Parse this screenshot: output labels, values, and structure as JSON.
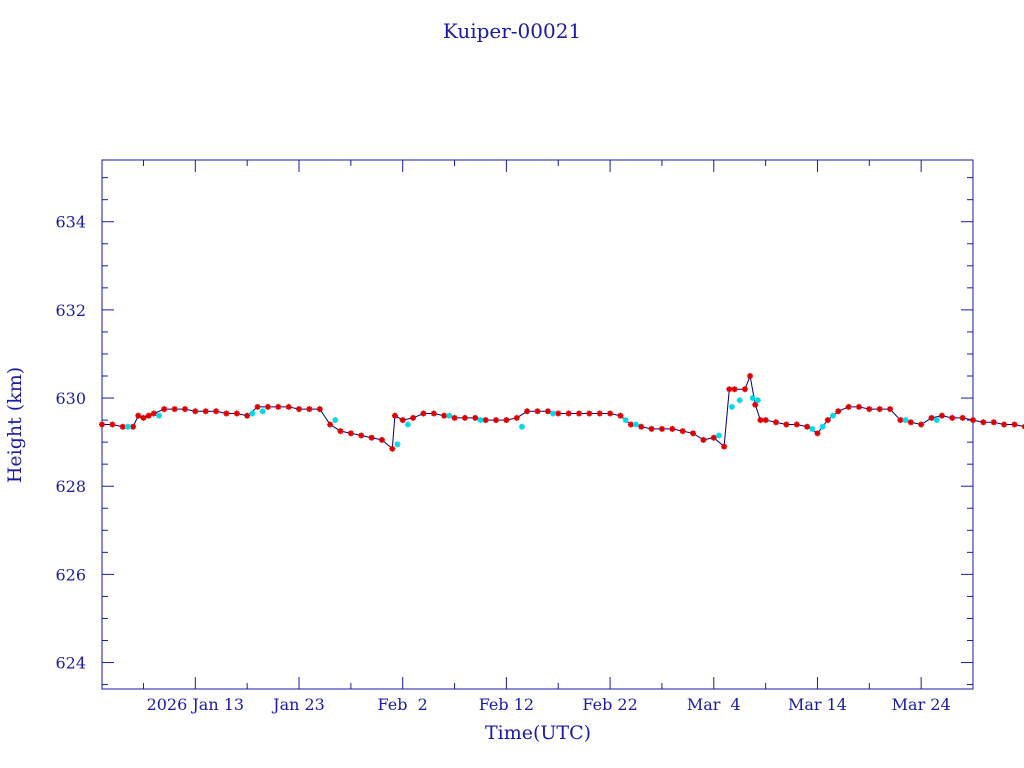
{
  "chart_data": {
    "type": "line",
    "title": "Kuiper-00021",
    "xlabel": "Time(UTC)",
    "ylabel": "Height (km)",
    "x_tick_labels": [
      "2026 Jan 13",
      "Jan 23",
      "Feb  2",
      "Feb 12",
      "Feb 22",
      "Mar  4",
      "Mar 14",
      "Mar 24"
    ],
    "x_ticks": [
      "2026-01-13",
      "2026-01-23",
      "2026-02-02",
      "2026-02-12",
      "2026-02-22",
      "2026-03-04",
      "2026-03-14",
      "2026-03-24"
    ],
    "xlim": [
      "2026-01-04",
      "2026-03-29"
    ],
    "y_ticks": [
      624,
      626,
      628,
      630,
      632,
      634
    ],
    "ylim": [
      623.4,
      635.4
    ],
    "grid": false,
    "colors": {
      "axis": "#1a1aa6",
      "line": "#000080",
      "series_a": "#e00000",
      "series_b": "#00d8e8"
    },
    "series": [
      {
        "marker": "asterisk",
        "color": "#e00000",
        "points": [
          [
            "2026-01-04",
            629.4
          ],
          [
            "2026-01-05",
            629.4
          ],
          [
            "2026-01-06",
            629.35
          ],
          [
            "2026-01-07",
            629.35
          ],
          [
            "2026-01-07T12",
            629.6
          ],
          [
            "2026-01-08",
            629.55
          ],
          [
            "2026-01-08T12",
            629.6
          ],
          [
            "2026-01-09",
            629.65
          ],
          [
            "2026-01-10",
            629.75
          ],
          [
            "2026-01-11",
            629.75
          ],
          [
            "2026-01-12",
            629.75
          ],
          [
            "2026-01-13",
            629.7
          ],
          [
            "2026-01-14",
            629.7
          ],
          [
            "2026-01-15",
            629.7
          ],
          [
            "2026-01-16",
            629.65
          ],
          [
            "2026-01-17",
            629.65
          ],
          [
            "2026-01-18",
            629.6
          ],
          [
            "2026-01-19",
            629.8
          ],
          [
            "2026-01-20",
            629.8
          ],
          [
            "2026-01-21",
            629.8
          ],
          [
            "2026-01-22",
            629.8
          ],
          [
            "2026-01-23",
            629.75
          ],
          [
            "2026-01-24",
            629.75
          ],
          [
            "2026-01-25",
            629.75
          ],
          [
            "2026-01-26",
            629.4
          ],
          [
            "2026-01-27",
            629.25
          ],
          [
            "2026-01-28",
            629.2
          ],
          [
            "2026-01-29",
            629.15
          ],
          [
            "2026-01-30",
            629.1
          ],
          [
            "2026-01-31",
            629.05
          ],
          [
            "2026-02-01",
            628.85
          ],
          [
            "2026-02-01T06",
            629.6
          ],
          [
            "2026-02-02",
            629.5
          ],
          [
            "2026-02-03",
            629.55
          ],
          [
            "2026-02-04",
            629.65
          ],
          [
            "2026-02-05",
            629.65
          ],
          [
            "2026-02-06",
            629.6
          ],
          [
            "2026-02-07",
            629.55
          ],
          [
            "2026-02-08",
            629.55
          ],
          [
            "2026-02-09",
            629.55
          ],
          [
            "2026-02-10",
            629.5
          ],
          [
            "2026-02-11",
            629.5
          ],
          [
            "2026-02-12",
            629.5
          ],
          [
            "2026-02-13",
            629.55
          ],
          [
            "2026-02-14",
            629.7
          ],
          [
            "2026-02-15",
            629.7
          ],
          [
            "2026-02-16",
            629.7
          ],
          [
            "2026-02-17",
            629.65
          ],
          [
            "2026-02-18",
            629.65
          ],
          [
            "2026-02-19",
            629.65
          ],
          [
            "2026-02-20",
            629.65
          ],
          [
            "2026-02-21",
            629.65
          ],
          [
            "2026-02-22",
            629.65
          ],
          [
            "2026-02-23",
            629.6
          ],
          [
            "2026-02-24",
            629.4
          ],
          [
            "2026-02-25",
            629.35
          ],
          [
            "2026-02-26",
            629.3
          ],
          [
            "2026-02-27",
            629.3
          ],
          [
            "2026-02-28",
            629.3
          ],
          [
            "2026-03-01",
            629.25
          ],
          [
            "2026-03-02",
            629.2
          ],
          [
            "2026-03-03",
            629.05
          ],
          [
            "2026-03-04",
            629.1
          ],
          [
            "2026-03-05",
            628.9
          ],
          [
            "2026-03-05T12",
            630.2
          ],
          [
            "2026-03-06",
            630.2
          ],
          [
            "2026-03-07",
            630.2
          ],
          [
            "2026-03-07T12",
            630.5
          ],
          [
            "2026-03-08",
            629.85
          ],
          [
            "2026-03-08T12",
            629.5
          ],
          [
            "2026-03-09",
            629.5
          ],
          [
            "2026-03-10",
            629.45
          ],
          [
            "2026-03-11",
            629.4
          ],
          [
            "2026-03-12",
            629.4
          ],
          [
            "2026-03-13",
            629.35
          ],
          [
            "2026-03-14",
            629.2
          ],
          [
            "2026-03-15",
            629.5
          ],
          [
            "2026-03-16",
            629.7
          ],
          [
            "2026-03-17",
            629.8
          ],
          [
            "2026-03-18",
            629.8
          ],
          [
            "2026-03-19",
            629.75
          ],
          [
            "2026-03-20",
            629.75
          ],
          [
            "2026-03-21",
            629.75
          ],
          [
            "2026-03-22",
            629.5
          ],
          [
            "2026-03-23",
            629.45
          ],
          [
            "2026-03-24",
            629.4
          ],
          [
            "2026-03-25",
            629.55
          ],
          [
            "2026-03-26",
            629.6
          ],
          [
            "2026-03-27",
            629.55
          ],
          [
            "2026-03-28",
            629.55
          ],
          [
            "2026-03-29",
            629.5
          ],
          [
            "2026-03-30",
            629.45
          ],
          [
            "2026-03-31",
            629.45
          ],
          [
            "2026-04-01",
            629.4
          ],
          [
            "2026-04-02",
            629.4
          ],
          [
            "2026-04-03",
            629.35
          ],
          [
            "2026-04-04",
            629.35
          ]
        ]
      },
      {
        "marker": "asterisk",
        "color": "#00d8e8",
        "points": [
          [
            "2026-01-06T12",
            629.35
          ],
          [
            "2026-01-09T12",
            629.6
          ],
          [
            "2026-01-18T12",
            629.65
          ],
          [
            "2026-01-19T12",
            629.7
          ],
          [
            "2026-01-26T12",
            629.5
          ],
          [
            "2026-02-01T12",
            628.95
          ],
          [
            "2026-02-02T12",
            629.4
          ],
          [
            "2026-02-06T12",
            629.6
          ],
          [
            "2026-02-09T12",
            629.5
          ],
          [
            "2026-02-13T12",
            629.35
          ],
          [
            "2026-02-16T12",
            629.65
          ],
          [
            "2026-02-23T12",
            629.5
          ],
          [
            "2026-02-24T12",
            629.4
          ],
          [
            "2026-03-04T12",
            629.15
          ],
          [
            "2026-03-05T18",
            629.8
          ],
          [
            "2026-03-06T12",
            629.95
          ],
          [
            "2026-03-07T18",
            630.0
          ],
          [
            "2026-03-08T06",
            629.95
          ],
          [
            "2026-03-13T12",
            629.3
          ],
          [
            "2026-03-14T12",
            629.35
          ],
          [
            "2026-03-15T12",
            629.6
          ],
          [
            "2026-03-22T12",
            629.5
          ],
          [
            "2026-03-25T12",
            629.5
          ]
        ]
      }
    ]
  }
}
